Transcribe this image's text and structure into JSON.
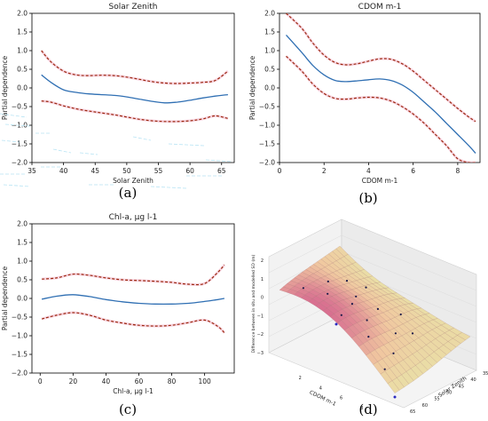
{
  "captions": [
    "(a)",
    "(b)",
    "(c)",
    "(d)"
  ],
  "chart_data": [
    {
      "type": "line",
      "title": "Solar Zenith",
      "xlabel": "Solar Zenith",
      "ylabel": "Partial dependence",
      "xlim": [
        35,
        67
      ],
      "ylim": [
        -2.0,
        2.0
      ],
      "xticks": [
        35,
        40,
        45,
        50,
        55,
        60,
        65
      ],
      "yticks": [
        -2.0,
        -1.5,
        -1.0,
        -0.5,
        0.0,
        0.5,
        1.0,
        1.5,
        2.0
      ],
      "ytick_labels": [
        "−2.0",
        "−1.5",
        "−1.0",
        "−0.5",
        "0.0",
        "0.5",
        "1.0",
        "1.5",
        "2.0"
      ],
      "series": [
        {
          "role": "mean",
          "x": [
            36.5,
            38,
            40,
            42,
            44,
            46,
            48,
            50,
            52,
            54,
            56,
            58,
            60,
            62,
            64,
            66
          ],
          "y": [
            0.35,
            0.15,
            -0.05,
            -0.12,
            -0.16,
            -0.18,
            -0.2,
            -0.24,
            -0.3,
            -0.36,
            -0.4,
            -0.38,
            -0.33,
            -0.27,
            -0.22,
            -0.18
          ]
        },
        {
          "role": "upper",
          "x": [
            36.5,
            38,
            40,
            42,
            44,
            46,
            48,
            50,
            52,
            54,
            56,
            58,
            60,
            62,
            64,
            66
          ],
          "y": [
            1.0,
            0.7,
            0.45,
            0.35,
            0.33,
            0.34,
            0.33,
            0.29,
            0.23,
            0.17,
            0.13,
            0.12,
            0.13,
            0.15,
            0.2,
            0.45
          ]
        },
        {
          "role": "lower",
          "x": [
            36.5,
            38,
            40,
            42,
            44,
            46,
            48,
            50,
            52,
            54,
            56,
            58,
            60,
            62,
            64,
            66
          ],
          "y": [
            -0.35,
            -0.38,
            -0.48,
            -0.56,
            -0.62,
            -0.67,
            -0.72,
            -0.78,
            -0.84,
            -0.88,
            -0.9,
            -0.9,
            -0.88,
            -0.83,
            -0.75,
            -0.82
          ]
        }
      ]
    },
    {
      "type": "line",
      "title": "CDOM m-1",
      "xlabel": "CDOM m-1",
      "ylabel": "Partial dependence",
      "xlim": [
        0,
        9
      ],
      "ylim": [
        -2.0,
        2.0
      ],
      "xticks": [
        0,
        2,
        4,
        6,
        8
      ],
      "yticks": [
        -2.0,
        -1.5,
        -1.0,
        -0.5,
        0.0,
        0.5,
        1.0,
        1.5,
        2.0
      ],
      "ytick_labels": [
        "−2.0",
        "−1.5",
        "−1.0",
        "−0.5",
        "0.0",
        "0.5",
        "1.0",
        "1.5",
        "2.0"
      ],
      "series": [
        {
          "role": "mean",
          "x": [
            0.3,
            1,
            1.5,
            2,
            2.5,
            3,
            3.5,
            4,
            4.5,
            5,
            5.5,
            6,
            6.5,
            7,
            7.5,
            8,
            8.5,
            8.8
          ],
          "y": [
            1.42,
            0.95,
            0.6,
            0.35,
            0.2,
            0.17,
            0.19,
            0.22,
            0.24,
            0.2,
            0.08,
            -0.12,
            -0.38,
            -0.65,
            -0.95,
            -1.25,
            -1.55,
            -1.75
          ]
        },
        {
          "role": "upper",
          "x": [
            0.3,
            1,
            1.5,
            2,
            2.5,
            3,
            3.5,
            4,
            4.5,
            5,
            5.5,
            6,
            6.5,
            7,
            7.5,
            8,
            8.5,
            8.8
          ],
          "y": [
            2.0,
            1.6,
            1.2,
            0.88,
            0.68,
            0.62,
            0.65,
            0.72,
            0.78,
            0.77,
            0.65,
            0.45,
            0.2,
            -0.05,
            -0.3,
            -0.55,
            -0.78,
            -0.9
          ]
        },
        {
          "role": "lower",
          "x": [
            0.3,
            1,
            1.5,
            2,
            2.5,
            3,
            3.5,
            4,
            4.5,
            5,
            5.5,
            6,
            6.5,
            7,
            7.5,
            8,
            8.5,
            8.8
          ],
          "y": [
            0.85,
            0.45,
            0.1,
            -0.15,
            -0.28,
            -0.3,
            -0.27,
            -0.25,
            -0.27,
            -0.35,
            -0.5,
            -0.7,
            -0.95,
            -1.25,
            -1.55,
            -1.9,
            -2.0,
            -2.0
          ]
        }
      ]
    },
    {
      "type": "line",
      "title": "Chl-a, μg l-1",
      "xlabel": "Chl-a, μg l-1",
      "ylabel": "Partial dependence",
      "xlim": [
        -5,
        118
      ],
      "ylim": [
        -2.0,
        2.0
      ],
      "xticks": [
        0,
        20,
        40,
        60,
        80,
        100
      ],
      "yticks": [
        -2.0,
        -1.5,
        -1.0,
        -0.5,
        0.0,
        0.5,
        1.0,
        1.5,
        2.0
      ],
      "ytick_labels": [
        "−2.0",
        "−1.5",
        "−1.0",
        "−0.5",
        "0.0",
        "0.5",
        "1.0",
        "1.5",
        "2.0"
      ],
      "series": [
        {
          "role": "mean",
          "x": [
            1,
            10,
            20,
            30,
            40,
            50,
            60,
            70,
            80,
            90,
            100,
            108,
            112
          ],
          "y": [
            -0.02,
            0.06,
            0.1,
            0.05,
            -0.03,
            -0.09,
            -0.13,
            -0.15,
            -0.15,
            -0.13,
            -0.08,
            -0.03,
            0.0
          ]
        },
        {
          "role": "upper",
          "x": [
            1,
            10,
            20,
            30,
            40,
            50,
            60,
            70,
            80,
            90,
            100,
            108,
            112
          ],
          "y": [
            0.52,
            0.55,
            0.65,
            0.62,
            0.55,
            0.5,
            0.48,
            0.46,
            0.43,
            0.38,
            0.4,
            0.7,
            0.9
          ]
        },
        {
          "role": "lower",
          "x": [
            1,
            10,
            20,
            30,
            40,
            50,
            60,
            70,
            80,
            90,
            100,
            108,
            112
          ],
          "y": [
            -0.55,
            -0.45,
            -0.38,
            -0.45,
            -0.58,
            -0.66,
            -0.72,
            -0.74,
            -0.72,
            -0.65,
            -0.58,
            -0.75,
            -0.92
          ]
        }
      ]
    },
    {
      "type": "surface3d",
      "xlabel": "CDOM m-1",
      "ylabel": "Solar Zenith",
      "zlabel": "Difference between in situ and modelled SD (m)",
      "xticks": [
        2,
        4,
        6,
        8
      ],
      "yticks": [
        35,
        40,
        45,
        50,
        55,
        60,
        65
      ],
      "ytick_labels": [
        "35",
        "40",
        "45",
        "50",
        "55",
        "60",
        "65"
      ],
      "zticks": [
        -3,
        -2,
        -1,
        0,
        1,
        2
      ],
      "ztick_labels": [
        "−3",
        "−2",
        "−1",
        "0",
        "1",
        "2"
      ],
      "colors": {
        "low": "#e8e4a8",
        "mid": "#f0c8a0",
        "high": "#d87090"
      }
    }
  ]
}
